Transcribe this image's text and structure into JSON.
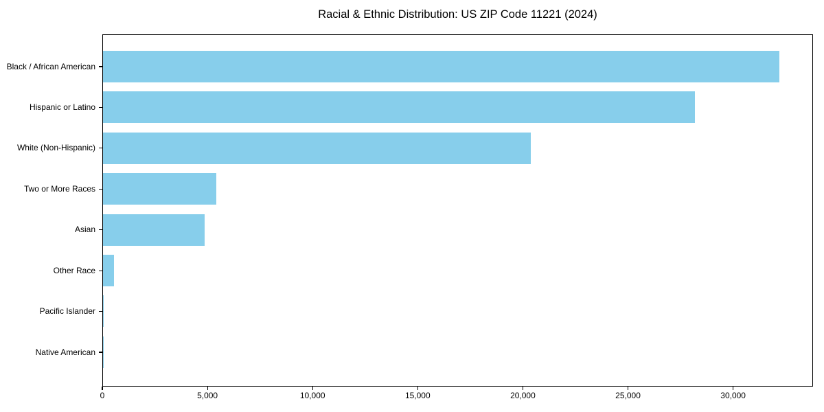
{
  "figure": {
    "background_color": "#ffffff",
    "text_color": "#000000"
  },
  "chart_data": {
    "type": "bar",
    "orientation": "horizontal",
    "title": "Racial & Ethnic Distribution: US ZIP Code 11221 (2024)",
    "xlabel": "",
    "ylabel": "",
    "categories": [
      "Black / African American",
      "Hispanic or Latino",
      "White (Non-Hispanic)",
      "Two or More Races",
      "Asian",
      "Other Race",
      "Pacific Islander",
      "Native American"
    ],
    "values": [
      32240,
      28210,
      20400,
      5390,
      4830,
      520,
      40,
      10
    ],
    "xlim": [
      0,
      33800
    ],
    "xticks": [
      0,
      5000,
      10000,
      15000,
      20000,
      25000,
      30000
    ],
    "xtick_labels": [
      "0",
      "5,000",
      "10,000",
      "15,000",
      "20,000",
      "25,000",
      "30,000"
    ],
    "bar_color": "#87CEEB",
    "grid": false,
    "legend": null
  }
}
